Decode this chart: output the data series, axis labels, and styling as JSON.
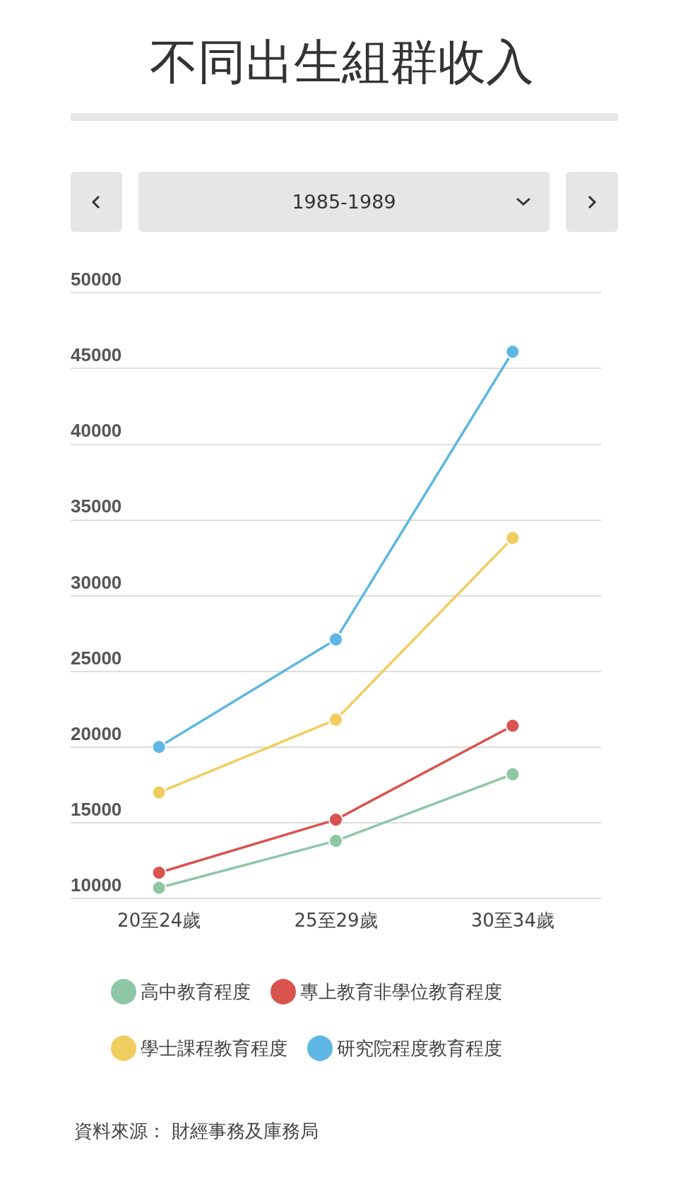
{
  "chart_data": {
    "type": "line",
    "title": "不同出生組群收入",
    "subtitle": "1985-1989",
    "categories": [
      "20至24歲",
      "25至29歲",
      "30至34歲"
    ],
    "series": [
      {
        "name": "高中教育程度",
        "color": "#8ec6a6",
        "values": [
          10700,
          13800,
          18200
        ]
      },
      {
        "name": "專上教育非學位教育程度",
        "color": "#d9534f",
        "values": [
          11700,
          15200,
          21400
        ]
      },
      {
        "name": "學士課程教育程度",
        "color": "#f0cd5f",
        "values": [
          17000,
          21800,
          33800
        ]
      },
      {
        "name": "研究院程度教育程度",
        "color": "#5db6e3",
        "values": [
          20000,
          27100,
          46100
        ]
      }
    ],
    "ylim": [
      10000,
      50000
    ],
    "yticks": [
      10000,
      15000,
      20000,
      25000,
      30000,
      35000,
      40000,
      45000,
      50000
    ],
    "grid": "y",
    "legend": "bottom",
    "marker": "circle",
    "line_style": "solid",
    "annotations": [
      "資料來源： 財經事務及庫務局"
    ]
  }
}
